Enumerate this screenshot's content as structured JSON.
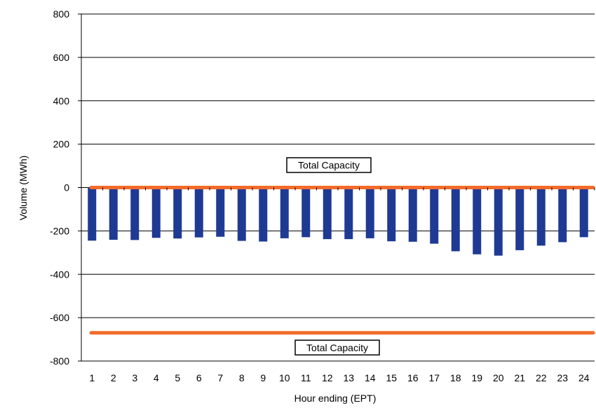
{
  "chart_data": {
    "type": "bar",
    "xlabel": "Hour ending (EPT)",
    "ylabel": "Volume (MWh)",
    "ylim": [
      -800,
      800
    ],
    "yticks": [
      800,
      600,
      400,
      200,
      0,
      -200,
      -400,
      -600,
      -800
    ],
    "grid": true,
    "categories": [
      "1",
      "2",
      "3",
      "4",
      "5",
      "6",
      "7",
      "8",
      "9",
      "10",
      "11",
      "12",
      "13",
      "14",
      "15",
      "16",
      "17",
      "18",
      "19",
      "20",
      "21",
      "22",
      "23",
      "24"
    ],
    "series": [
      {
        "values": [
          -245,
          -241,
          -242,
          -232,
          -235,
          -230,
          -227,
          -246,
          -249,
          -234,
          -229,
          -238,
          -238,
          -234,
          -248,
          -250,
          -259,
          -294,
          -308,
          -314,
          -289,
          -268,
          -252,
          -229
        ],
        "color": "#1F3A93"
      }
    ],
    "reference_lines": [
      {
        "value": 0,
        "label": "Total Capacity",
        "color": "#F26B2A"
      },
      {
        "value": -670,
        "label": "Total Capacity",
        "color": "#F26B2A"
      }
    ]
  }
}
